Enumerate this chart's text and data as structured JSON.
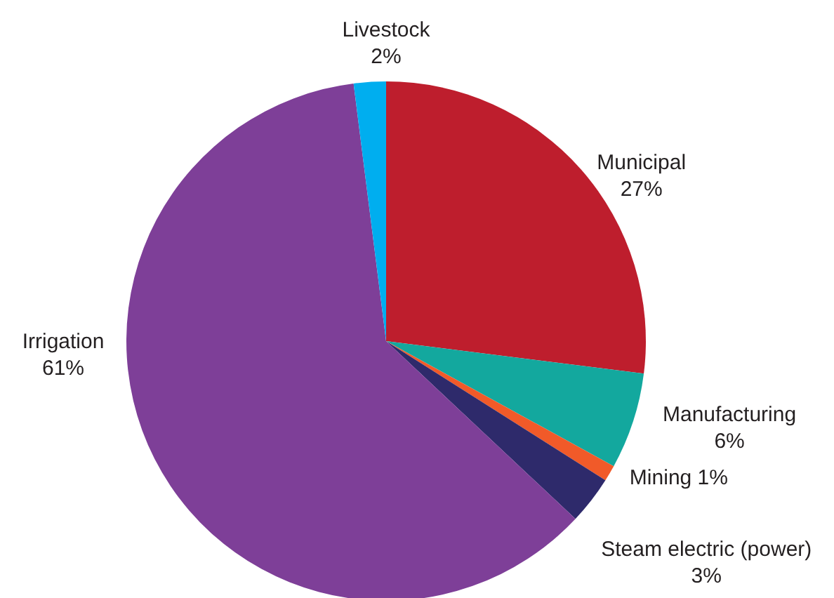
{
  "chart_data": {
    "type": "pie",
    "categories": [
      "Municipal",
      "Manufacturing",
      "Mining",
      "Steam electric (power)",
      "Irrigation",
      "Livestock"
    ],
    "values": [
      27,
      6,
      1,
      3,
      61,
      2
    ],
    "value_labels": [
      "27%",
      "6%",
      "1%",
      "3%",
      "61%",
      "2%"
    ],
    "colors": [
      "#be1e2d",
      "#13a89e",
      "#f15a29",
      "#2e2a6b",
      "#7e3f98",
      "#00aeef"
    ]
  }
}
